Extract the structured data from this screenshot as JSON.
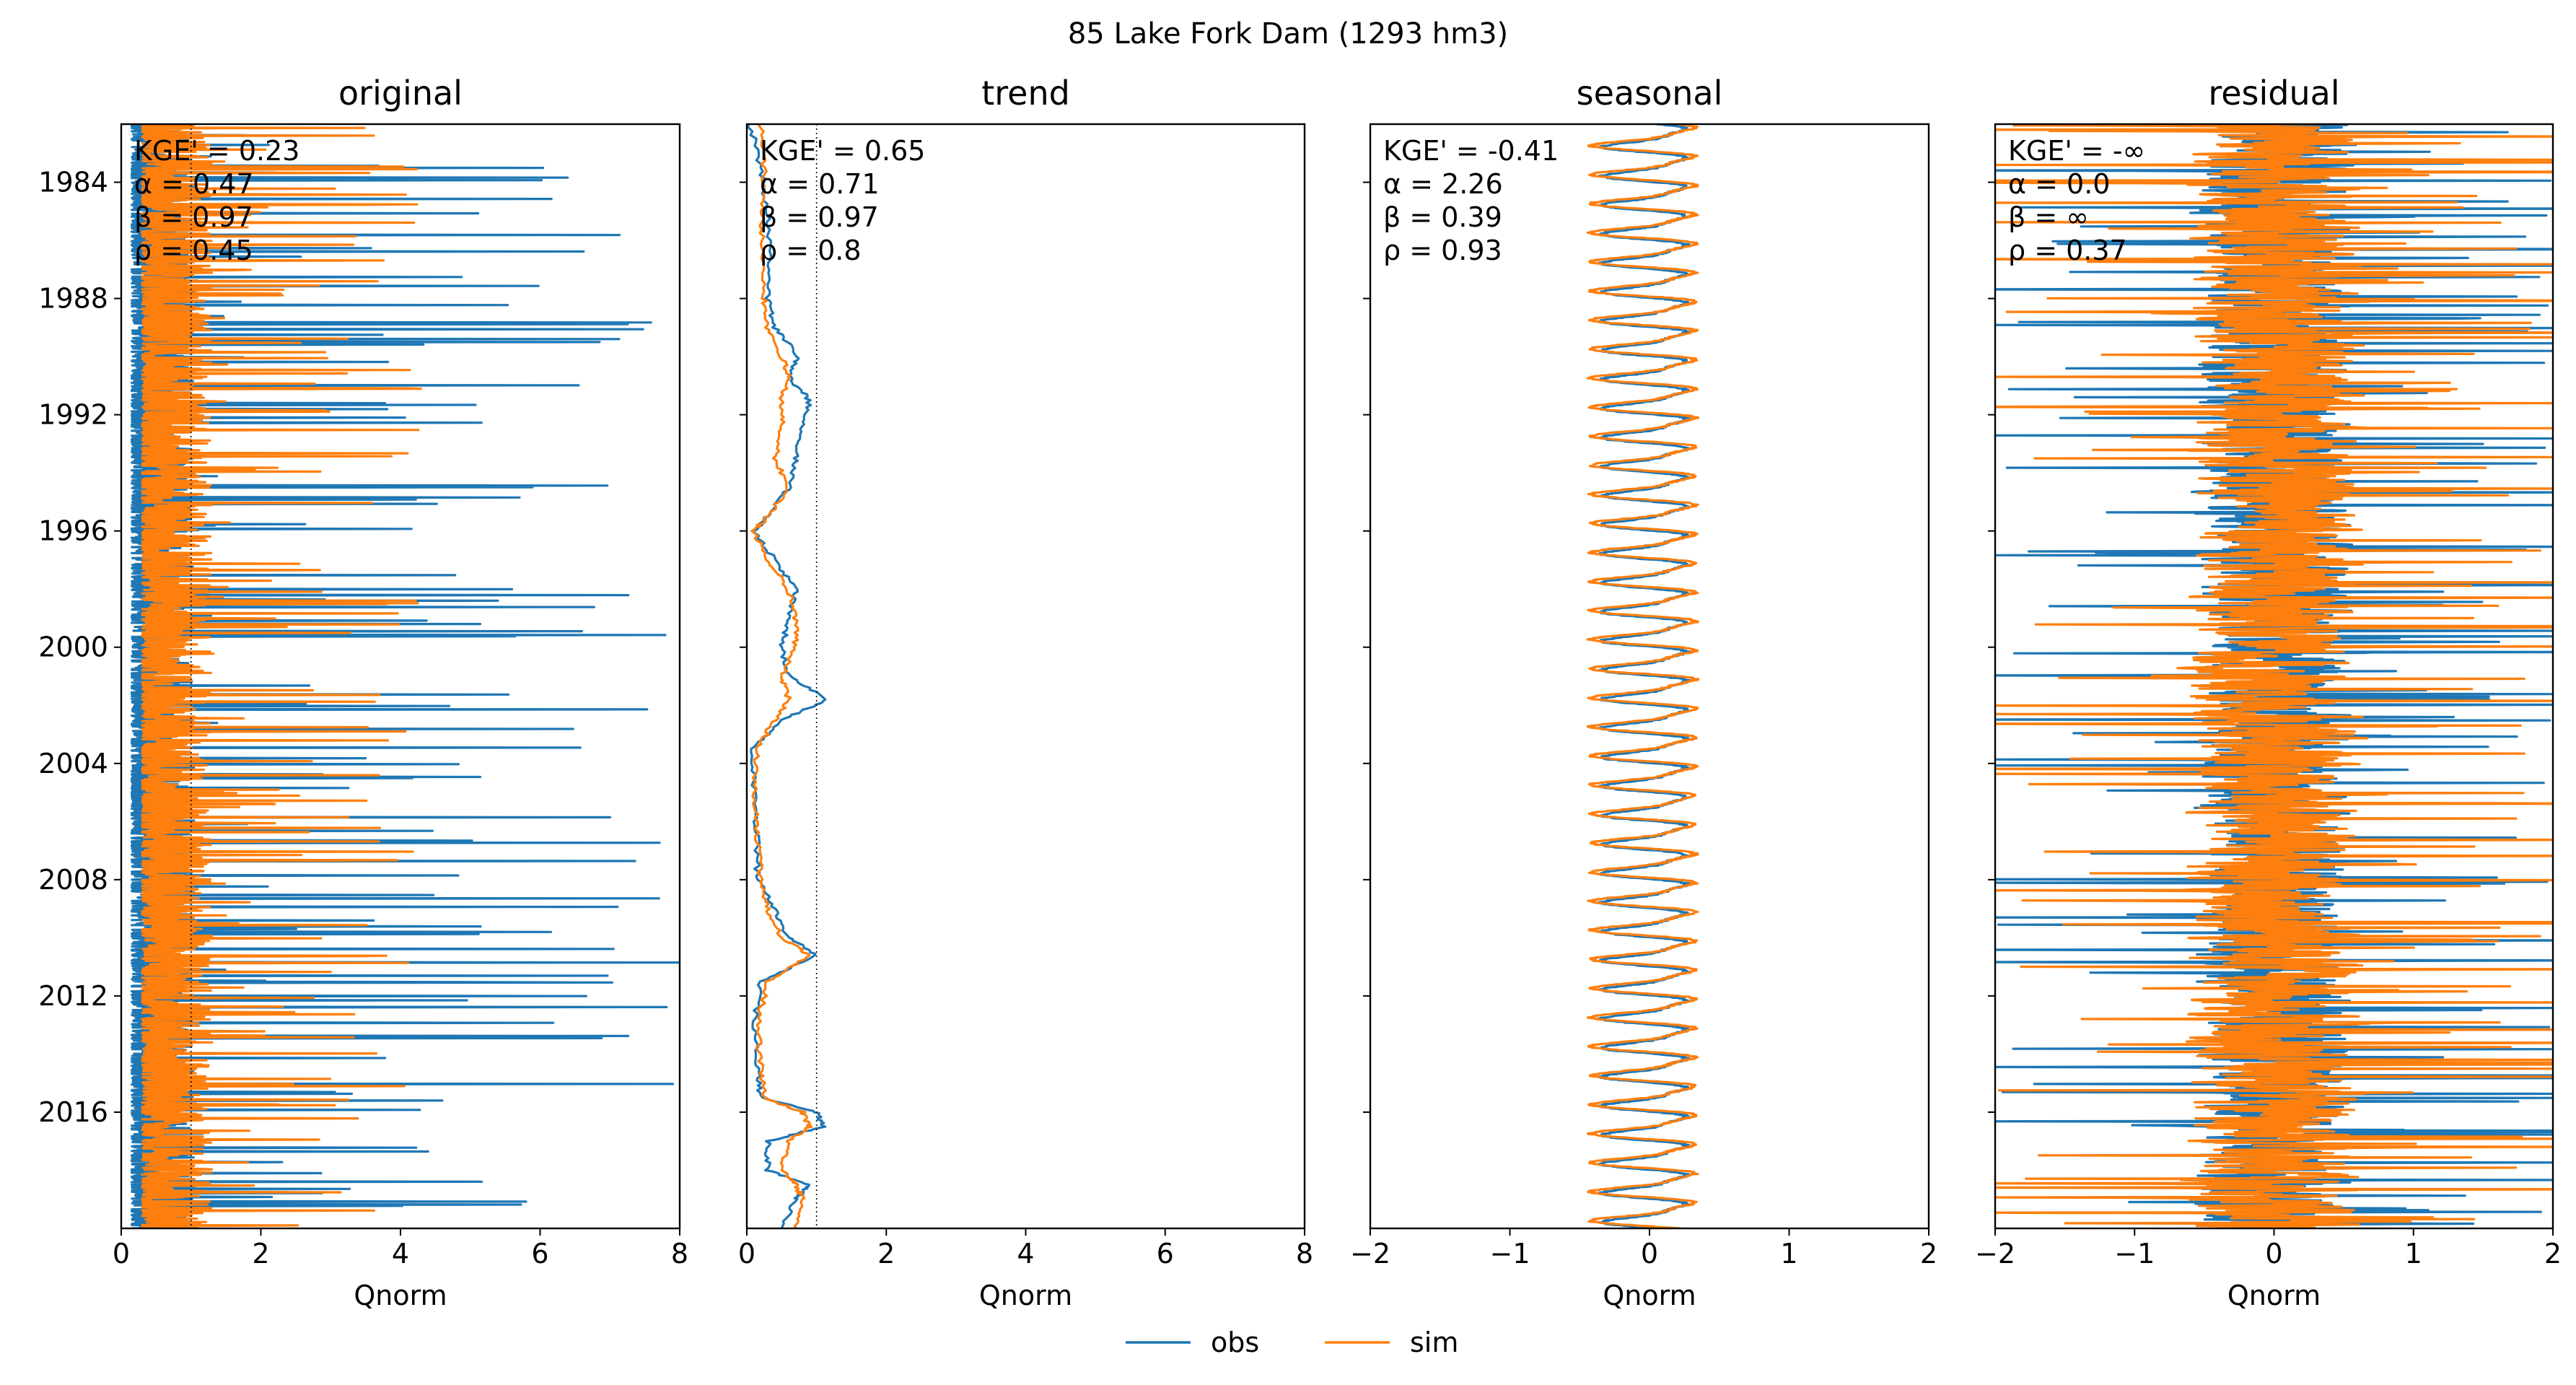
{
  "figure": {
    "suptitle": "85  Lake Fork Dam (1293 hm3)",
    "legend": {
      "placement": "bottom-center",
      "entries": [
        {
          "label": "obs",
          "color": "#1f77b4"
        },
        {
          "label": "sim",
          "color": "#ff7f0e"
        }
      ]
    }
  },
  "chart_data": [
    {
      "type": "line",
      "title": "original",
      "xlabel": "Qnorm",
      "xlim": [
        0,
        8
      ],
      "xticks": [
        "0",
        "2",
        "4",
        "6",
        "8"
      ],
      "ylim": [
        1982.0,
        2020.0
      ],
      "yticks": [
        "1984",
        "1988",
        "1992",
        "1996",
        "2000",
        "2004",
        "2008",
        "2012",
        "2016"
      ],
      "vlines": [
        0.0,
        1.0
      ],
      "annotation": [
        "KGE' = 0.23",
        "α = 0.47",
        "β = 0.97",
        "ρ = 0.45"
      ],
      "series": [
        {
          "name": "obs",
          "color": "#1f77b4",
          "base": 0.15,
          "amp": 0.9,
          "spike_prob": 0.05,
          "spike_max": 8.0,
          "kind": "flow"
        },
        {
          "name": "sim",
          "color": "#ff7f0e",
          "base": 0.3,
          "amp": 1.0,
          "spike_prob": 0.06,
          "spike_max": 4.3,
          "kind": "flow"
        }
      ]
    },
    {
      "type": "line",
      "title": "trend",
      "xlabel": "Qnorm",
      "xlim": [
        0,
        8
      ],
      "xticks": [
        "0",
        "2",
        "4",
        "6",
        "8"
      ],
      "ylim": [
        1982.0,
        2020.0
      ],
      "yticks": [
        "1984",
        "1988",
        "1992",
        "1996",
        "2000",
        "2004",
        "2008",
        "2012",
        "2016"
      ],
      "vlines": [
        0.0,
        1.0
      ],
      "annotation": [
        "KGE' = 0.65",
        "α = 0.71",
        "β = 0.97",
        "ρ = 0.8"
      ],
      "series": [
        {
          "name": "obs",
          "color": "#1f77b4",
          "kind": "trend",
          "knots": [
            [
              1982.0,
              0.05
            ],
            [
              1983.5,
              0.2
            ],
            [
              1985,
              0.3
            ],
            [
              1986.5,
              0.35
            ],
            [
              1988,
              0.3
            ],
            [
              1989,
              0.4
            ],
            [
              1990,
              0.75
            ],
            [
              1990.7,
              0.6
            ],
            [
              1991.5,
              0.9
            ],
            [
              1992.5,
              0.8
            ],
            [
              1993.5,
              0.7
            ],
            [
              1994.5,
              0.6
            ],
            [
              1995.5,
              0.3
            ],
            [
              1996,
              0.1
            ],
            [
              1997,
              0.4
            ],
            [
              1998,
              0.7
            ],
            [
              1999,
              0.6
            ],
            [
              2000,
              0.5
            ],
            [
              2001,
              0.6
            ],
            [
              2001.8,
              1.15
            ],
            [
              2002.5,
              0.5
            ],
            [
              2003.5,
              0.1
            ],
            [
              2005,
              0.1
            ],
            [
              2006.5,
              0.15
            ],
            [
              2008,
              0.15
            ],
            [
              2009,
              0.4
            ],
            [
              2010,
              0.6
            ],
            [
              2010.6,
              1.0
            ],
            [
              2011.5,
              0.2
            ],
            [
              2013,
              0.1
            ],
            [
              2014.5,
              0.15
            ],
            [
              2015.5,
              0.2
            ],
            [
              2016,
              1.0
            ],
            [
              2016.5,
              1.1
            ],
            [
              2017,
              0.3
            ],
            [
              2018,
              0.3
            ],
            [
              2018.5,
              0.9
            ],
            [
              2019,
              0.7
            ],
            [
              2020,
              0.5
            ]
          ]
        },
        {
          "name": "sim",
          "color": "#ff7f0e",
          "kind": "trend",
          "knots": [
            [
              1982.0,
              0.2
            ],
            [
              1983.5,
              0.25
            ],
            [
              1985,
              0.2
            ],
            [
              1986.5,
              0.25
            ],
            [
              1988,
              0.25
            ],
            [
              1989,
              0.3
            ],
            [
              1990,
              0.5
            ],
            [
              1990.7,
              0.6
            ],
            [
              1991.5,
              0.5
            ],
            [
              1992.5,
              0.5
            ],
            [
              1993.5,
              0.4
            ],
            [
              1994.5,
              0.6
            ],
            [
              1995.5,
              0.3
            ],
            [
              1996,
              0.1
            ],
            [
              1997,
              0.3
            ],
            [
              1998,
              0.6
            ],
            [
              1999,
              0.7
            ],
            [
              2000,
              0.7
            ],
            [
              2001,
              0.5
            ],
            [
              2001.8,
              0.6
            ],
            [
              2002.5,
              0.4
            ],
            [
              2003.5,
              0.15
            ],
            [
              2005,
              0.1
            ],
            [
              2006.5,
              0.15
            ],
            [
              2008,
              0.2
            ],
            [
              2009,
              0.3
            ],
            [
              2010,
              0.5
            ],
            [
              2010.6,
              0.9
            ],
            [
              2011.5,
              0.3
            ],
            [
              2013,
              0.15
            ],
            [
              2014.5,
              0.2
            ],
            [
              2015.5,
              0.25
            ],
            [
              2016,
              0.8
            ],
            [
              2016.5,
              0.9
            ],
            [
              2017,
              0.6
            ],
            [
              2018,
              0.5
            ],
            [
              2018.5,
              0.7
            ],
            [
              2019,
              0.8
            ],
            [
              2020,
              0.7
            ]
          ]
        }
      ]
    },
    {
      "type": "line",
      "title": "seasonal",
      "xlabel": "Qnorm",
      "xlim": [
        -2,
        2
      ],
      "xticks": [
        "−2",
        "−1",
        "0",
        "1",
        "2"
      ],
      "ylim": [
        1982.0,
        2020.0
      ],
      "yticks": [
        "1984",
        "1988",
        "1992",
        "1996",
        "2000",
        "2004",
        "2008",
        "2012",
        "2016"
      ],
      "vlines": [],
      "annotation": [
        "KGE' = -0.41",
        "α = 2.26",
        "β = 0.39",
        "ρ = 0.93"
      ],
      "series": [
        {
          "name": "obs",
          "color": "#1f77b4",
          "kind": "seasonal",
          "amp": 0.3,
          "phase": 0.0
        },
        {
          "name": "sim",
          "color": "#ff7f0e",
          "kind": "seasonal",
          "amp": 0.37,
          "phase": 0.05
        }
      ]
    },
    {
      "type": "line",
      "title": "residual",
      "xlabel": "Qnorm",
      "xlim": [
        -2,
        2
      ],
      "xticks": [
        "−2",
        "−1",
        "0",
        "1",
        "2"
      ],
      "ylim": [
        1982.0,
        2020.0
      ],
      "yticks": [
        "1984",
        "1988",
        "1992",
        "1996",
        "2000",
        "2004",
        "2008",
        "2012",
        "2016"
      ],
      "vlines": [],
      "annotation": [
        "KGE' = -∞",
        "α = 0.0",
        "β = ∞",
        "ρ = 0.37"
      ],
      "series": [
        {
          "name": "obs",
          "color": "#1f77b4",
          "kind": "residual",
          "amp": 0.45,
          "spike_prob": 0.06,
          "spike_max": 2.0
        },
        {
          "name": "sim",
          "color": "#ff7f0e",
          "kind": "residual",
          "amp": 0.5,
          "spike_prob": 0.07,
          "spike_max": 2.0
        }
      ]
    }
  ]
}
